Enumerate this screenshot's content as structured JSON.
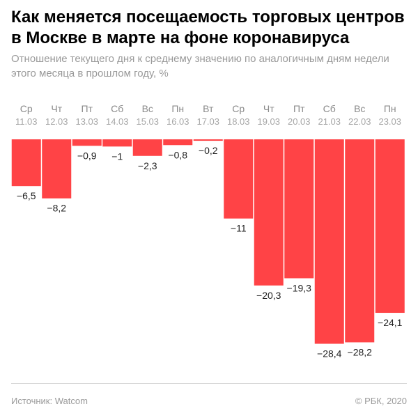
{
  "header": {
    "title": "Как меняется посещаемость торговых центров в Москве в марте на фоне коронавируса",
    "subtitle": "Отношение текущего дня к среднему значению по аналогичным дням недели этого месяца в прошлом году, %"
  },
  "footer": {
    "source": "Источник: Watcom",
    "copyright": "© РБК, 2020"
  },
  "colors": {
    "bar": "#ff4346",
    "label": "#222222",
    "tick_day": "#8a8a8a",
    "tick_date": "#a6a6a6"
  },
  "chart_data": {
    "type": "bar",
    "title": "Как меняется посещаемость торговых центров в Москве в марте на фоне коронавируса",
    "ylabel": "%",
    "ylim": [
      -30,
      0
    ],
    "categories": [
      {
        "day": "Ср",
        "date": "11.03"
      },
      {
        "day": "Чт",
        "date": "12.03"
      },
      {
        "day": "Пт",
        "date": "13.03"
      },
      {
        "day": "Сб",
        "date": "14.03"
      },
      {
        "day": "Вс",
        "date": "15.03"
      },
      {
        "day": "Пн",
        "date": "16.03"
      },
      {
        "day": "Вт",
        "date": "17.03"
      },
      {
        "day": "Ср",
        "date": "18.03"
      },
      {
        "day": "Чт",
        "date": "19.03"
      },
      {
        "day": "Пт",
        "date": "20.03"
      },
      {
        "day": "Сб",
        "date": "21.03"
      },
      {
        "day": "Вс",
        "date": "22.03"
      },
      {
        "day": "Пн",
        "date": "23.03"
      }
    ],
    "values": [
      -6.5,
      -8.2,
      -0.9,
      -1,
      -2.3,
      -0.8,
      -0.2,
      -11,
      -20.3,
      -19.3,
      -28.4,
      -28.2,
      -24.1
    ],
    "value_labels": [
      "−6,5",
      "−8,2",
      "−0,9",
      "−1",
      "−2,3",
      "−0,8",
      "−0,2",
      "−11",
      "−20,3",
      "−19,3",
      "−28,4",
      "−28,2",
      "−24,1"
    ]
  }
}
